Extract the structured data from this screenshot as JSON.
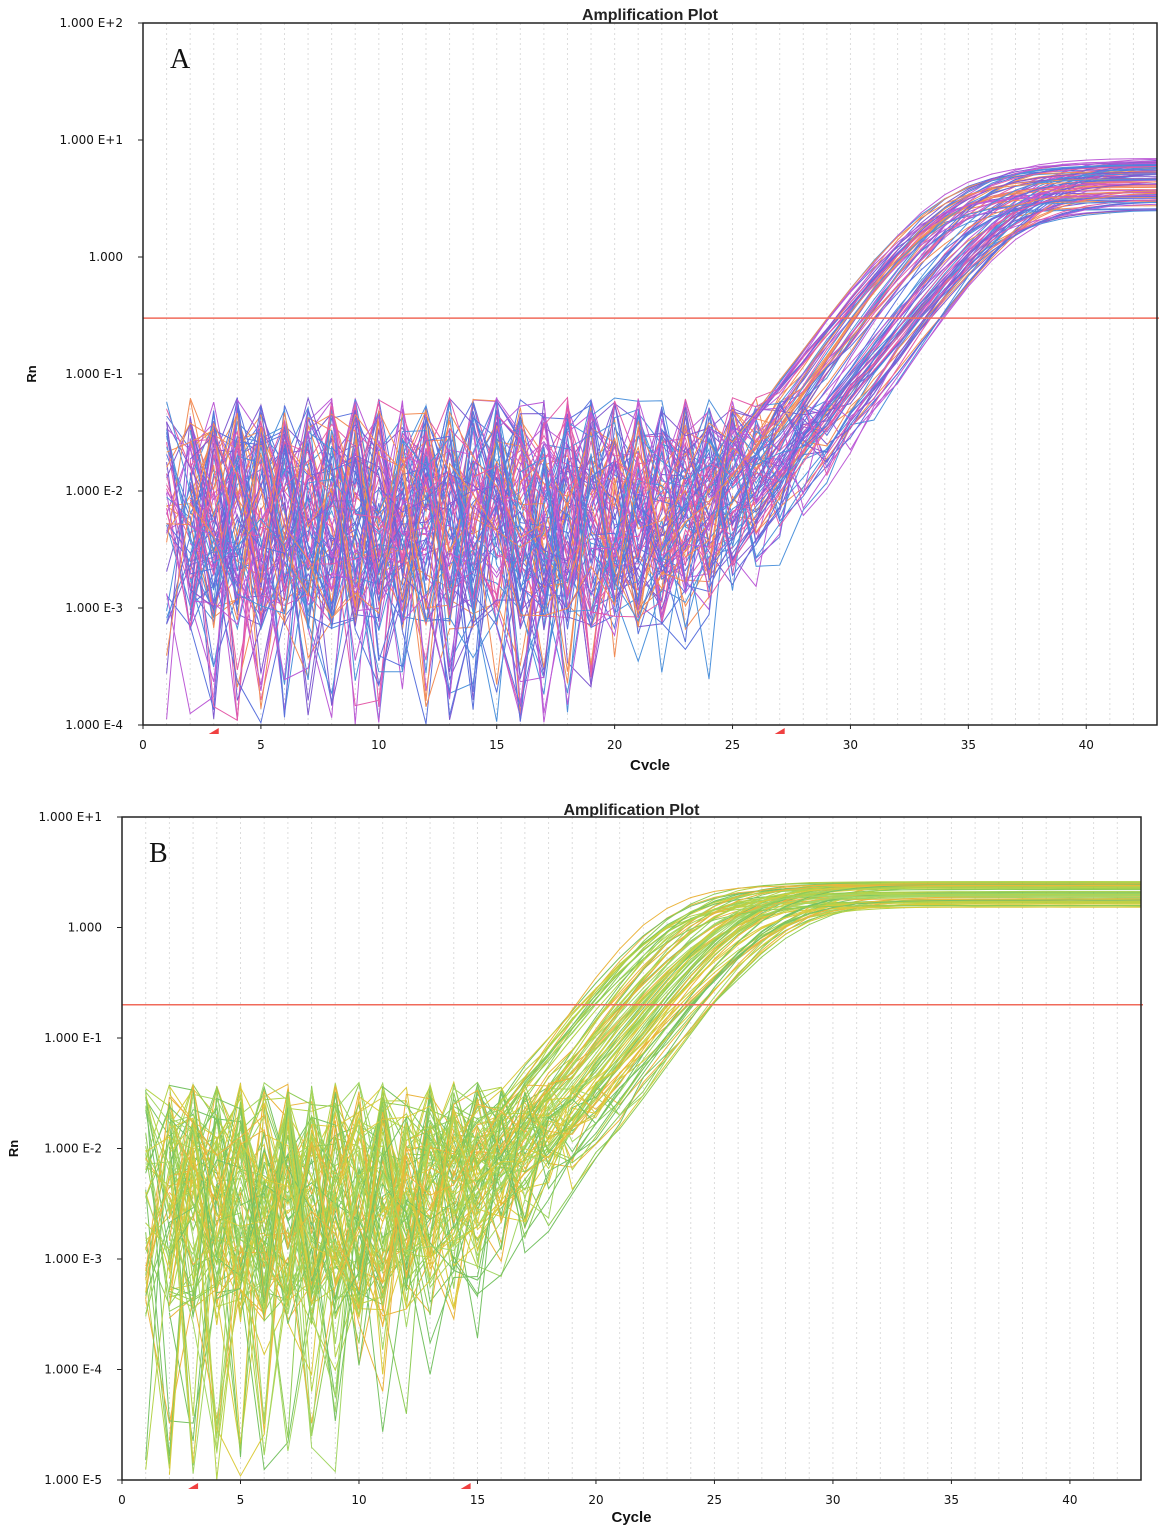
{
  "chart_data": [
    {
      "type": "line",
      "panel_label": "A",
      "title": "Amplification Plot",
      "xlabel": "Cycle",
      "ylabel": "Rn",
      "yscale": "log",
      "xlim": [
        0,
        43
      ],
      "ylim": [
        0.0001,
        100
      ],
      "xticks": [
        "0",
        "5",
        "10",
        "15",
        "20",
        "25",
        "30",
        "35",
        "40"
      ],
      "yticks": [
        "1.000 E+2",
        "1.000 E+1",
        "1.000",
        "1.000 E-1",
        "1.000 E-2",
        "1.000 E-3",
        "1.000 E-4"
      ],
      "threshold": 0.3,
      "baseline_markers": [
        3,
        27
      ],
      "series_count": 96,
      "colors": [
        "#3f5bd8",
        "#6a3fc9",
        "#e0409b",
        "#f07a3a",
        "#2f7fd6",
        "#b13fd0"
      ],
      "noise_range_log10": [
        -3.2,
        -1.2
      ],
      "ct_range": [
        29,
        34
      ],
      "plateau_range": [
        2.5,
        7.0
      ],
      "grid": true
    },
    {
      "type": "line",
      "panel_label": "B",
      "title": "Amplification Plot",
      "xlabel": "Cycle",
      "ylabel": "Rn",
      "yscale": "log",
      "xlim": [
        0,
        43
      ],
      "ylim": [
        1e-05,
        10
      ],
      "xticks": [
        "0",
        "5",
        "10",
        "15",
        "20",
        "25",
        "30",
        "35",
        "40"
      ],
      "yticks": [
        "1.000 E+1",
        "1.000",
        "1.000 E-1",
        "1.000 E-2",
        "1.000 E-3",
        "1.000 E-4",
        "1.000 E-5"
      ],
      "threshold": 0.2,
      "baseline_markers": [
        3,
        14.5
      ],
      "series_count": 96,
      "colors": [
        "#7cc43a",
        "#a8cc2a",
        "#d6c21c",
        "#5fb848",
        "#e8a81c",
        "#94d04a"
      ],
      "noise_range_log10": [
        -3.6,
        -1.4
      ],
      "ct_range": [
        19,
        25
      ],
      "plateau_range": [
        1.5,
        2.6
      ],
      "grid": true
    }
  ]
}
